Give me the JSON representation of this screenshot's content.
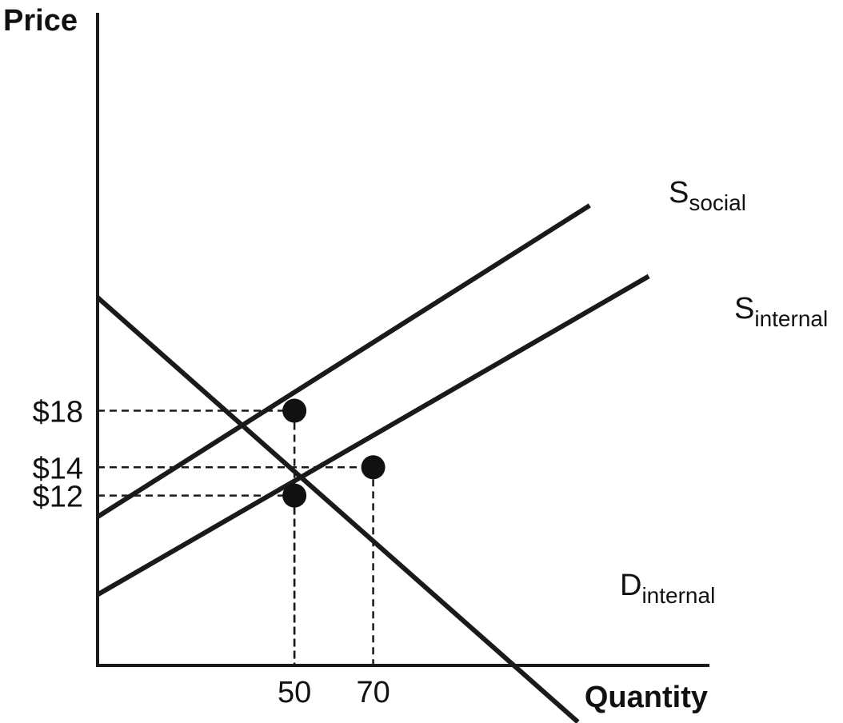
{
  "chart_data": {
    "type": "line",
    "xlabel": "Quantity",
    "ylabel": "Price",
    "xlim": [
      0,
      155
    ],
    "ylim": [
      0,
      46
    ],
    "x_ticks": [
      {
        "value": 50,
        "label": "50"
      },
      {
        "value": 70,
        "label": "70"
      }
    ],
    "y_ticks": [
      {
        "value": 18,
        "label": "$18"
      },
      {
        "value": 14,
        "label": "$14"
      },
      {
        "value": 12,
        "label": "$12"
      }
    ],
    "series": [
      {
        "name": "S",
        "subscript": "social",
        "points": [
          [
            0,
            10.5
          ],
          [
            125,
            32.5
          ]
        ]
      },
      {
        "name": "S",
        "subscript": "internal",
        "points": [
          [
            0,
            5.0
          ],
          [
            140,
            27.5
          ]
        ]
      },
      {
        "name": "D",
        "subscript": "internal",
        "points": [
          [
            0,
            26.0
          ],
          [
            122,
            -4.0
          ]
        ]
      }
    ],
    "highlighted_points": [
      {
        "x": 50,
        "y": 18
      },
      {
        "x": 70,
        "y": 14
      },
      {
        "x": 50,
        "y": 12
      }
    ],
    "guide_lines": [
      {
        "x": 50,
        "y": 18
      },
      {
        "x": 70,
        "y": 14
      },
      {
        "x": 50,
        "y": 12
      }
    ],
    "grid": false,
    "colors": {
      "line": "#1a1a1a",
      "background": "#ffffff"
    }
  }
}
